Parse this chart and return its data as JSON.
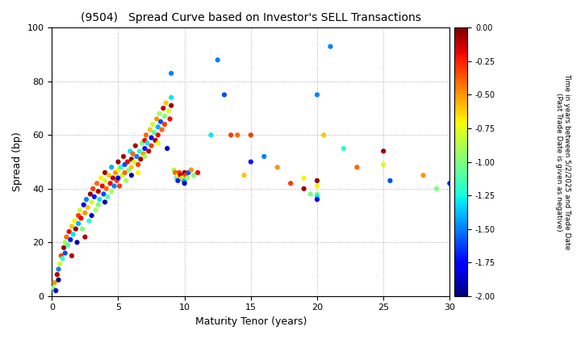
{
  "title": "(9504)   Spread Curve based on Investor's SELL Transactions",
  "xlabel": "Maturity Tenor (years)",
  "ylabel": "Spread (bp)",
  "xlim": [
    0,
    30
  ],
  "ylim": [
    0,
    100
  ],
  "xticks": [
    0,
    5,
    10,
    15,
    20,
    25,
    30
  ],
  "yticks": [
    0,
    20,
    40,
    60,
    80,
    100
  ],
  "colorbar_label_line1": "Time in years between 5/2/2025 and Trade Date",
  "colorbar_label_line2": "(Past Trade Date is given as negative)",
  "cbar_ticks": [
    0.0,
    -0.25,
    -0.5,
    -0.75,
    -1.0,
    -1.25,
    -1.5,
    -1.75,
    -2.0
  ],
  "clim": [
    -2.0,
    0.0
  ],
  "scatter_points": [
    [
      0.1,
      3,
      -1.0
    ],
    [
      0.2,
      5,
      -0.5
    ],
    [
      0.3,
      2,
      -1.8
    ],
    [
      0.4,
      8,
      -0.1
    ],
    [
      0.5,
      10,
      -1.5
    ],
    [
      0.5,
      6,
      -2.0
    ],
    [
      0.6,
      12,
      -0.8
    ],
    [
      0.7,
      15,
      -0.3
    ],
    [
      0.8,
      14,
      -1.2
    ],
    [
      0.9,
      18,
      -0.05
    ],
    [
      1.0,
      16,
      -1.6
    ],
    [
      1.0,
      20,
      -0.9
    ],
    [
      1.1,
      22,
      -0.4
    ],
    [
      1.2,
      19,
      -1.1
    ],
    [
      1.3,
      24,
      -0.2
    ],
    [
      1.4,
      21,
      -1.7
    ],
    [
      1.5,
      26,
      -0.6
    ],
    [
      1.5,
      15,
      -0.1
    ],
    [
      1.6,
      23,
      -1.3
    ],
    [
      1.7,
      28,
      -0.7
    ],
    [
      1.8,
      25,
      -0.05
    ],
    [
      1.9,
      20,
      -1.9
    ],
    [
      2.0,
      30,
      -0.3
    ],
    [
      2.0,
      27,
      -1.4
    ],
    [
      2.1,
      32,
      -0.8
    ],
    [
      2.2,
      29,
      -0.2
    ],
    [
      2.3,
      25,
      -1.0
    ],
    [
      2.4,
      34,
      -1.8
    ],
    [
      2.5,
      31,
      -0.5
    ],
    [
      2.5,
      22,
      -0.1
    ],
    [
      2.6,
      36,
      -1.5
    ],
    [
      2.7,
      33,
      -0.6
    ],
    [
      2.8,
      28,
      -1.2
    ],
    [
      2.9,
      38,
      -0.05
    ],
    [
      3.0,
      35,
      -0.8
    ],
    [
      3.0,
      30,
      -1.9
    ],
    [
      3.1,
      40,
      -0.3
    ],
    [
      3.2,
      37,
      -1.7
    ],
    [
      3.3,
      32,
      -0.9
    ],
    [
      3.4,
      42,
      -0.4
    ],
    [
      3.5,
      39,
      -0.1
    ],
    [
      3.5,
      34,
      -1.0
    ],
    [
      3.6,
      36,
      -1.3
    ],
    [
      3.7,
      44,
      -0.7
    ],
    [
      3.8,
      41,
      -0.2
    ],
    [
      3.9,
      38,
      -1.6
    ],
    [
      4.0,
      46,
      -0.05
    ],
    [
      4.0,
      43,
      -0.8
    ],
    [
      4.0,
      35,
      -1.9
    ],
    [
      4.1,
      40,
      -0.4
    ],
    [
      4.2,
      37,
      -1.1
    ],
    [
      4.3,
      45,
      -0.6
    ],
    [
      4.4,
      42,
      -0.2
    ],
    [
      4.5,
      48,
      -1.4
    ],
    [
      4.5,
      39,
      -0.9
    ],
    [
      4.6,
      44,
      -0.1
    ],
    [
      4.7,
      41,
      -1.5
    ],
    [
      4.8,
      46,
      -0.5
    ],
    [
      4.9,
      43,
      -0.3
    ],
    [
      5.0,
      50,
      -0.05
    ],
    [
      5.0,
      47,
      -0.7
    ],
    [
      5.0,
      44,
      -1.8
    ],
    [
      5.1,
      41,
      -0.3
    ],
    [
      5.2,
      48,
      -1.2
    ],
    [
      5.3,
      45,
      -0.8
    ],
    [
      5.4,
      52,
      -0.1
    ],
    [
      5.5,
      49,
      -1.6
    ],
    [
      5.5,
      46,
      -0.4
    ],
    [
      5.6,
      43,
      -0.9
    ],
    [
      5.7,
      50,
      -0.2
    ],
    [
      5.8,
      47,
      -1.0
    ],
    [
      5.9,
      54,
      -1.3
    ],
    [
      6.0,
      51,
      -0.05
    ],
    [
      6.0,
      48,
      -0.6
    ],
    [
      6.0,
      45,
      -1.9
    ],
    [
      6.1,
      53,
      -0.4
    ],
    [
      6.2,
      50,
      -0.8
    ],
    [
      6.3,
      56,
      -0.1
    ],
    [
      6.4,
      52,
      -1.5
    ],
    [
      6.5,
      49,
      -0.3
    ],
    [
      6.5,
      46,
      -0.7
    ],
    [
      6.6,
      54,
      -1.2
    ],
    [
      6.7,
      51,
      -0.05
    ],
    [
      6.8,
      57,
      -1.0
    ],
    [
      6.9,
      53,
      -0.5
    ],
    [
      7.0,
      58,
      -0.2
    ],
    [
      7.0,
      55,
      -1.7
    ],
    [
      7.0,
      52,
      -0.9
    ],
    [
      7.1,
      60,
      -0.4
    ],
    [
      7.2,
      57,
      -1.3
    ],
    [
      7.3,
      54,
      -0.1
    ],
    [
      7.4,
      62,
      -0.6
    ],
    [
      7.5,
      59,
      -1.8
    ],
    [
      7.5,
      56,
      -0.3
    ],
    [
      7.6,
      64,
      -0.8
    ],
    [
      7.7,
      61,
      -1.1
    ],
    [
      7.8,
      58,
      -0.05
    ],
    [
      7.9,
      66,
      -0.5
    ],
    [
      8.0,
      63,
      -1.4
    ],
    [
      8.0,
      60,
      -0.2
    ],
    [
      8.0,
      57,
      -0.7
    ],
    [
      8.1,
      68,
      -0.9
    ],
    [
      8.2,
      65,
      -1.6
    ],
    [
      8.3,
      62,
      -0.4
    ],
    [
      8.4,
      70,
      -0.1
    ],
    [
      8.5,
      67,
      -1.0
    ],
    [
      8.5,
      64,
      -0.3
    ],
    [
      8.6,
      72,
      -0.6
    ],
    [
      8.7,
      55,
      -1.9
    ],
    [
      8.8,
      69,
      -0.8
    ],
    [
      8.9,
      66,
      -0.2
    ],
    [
      9.0,
      74,
      -1.3
    ],
    [
      9.0,
      71,
      -0.05
    ],
    [
      9.0,
      83,
      -1.5
    ],
    [
      9.2,
      47,
      -0.9
    ],
    [
      9.3,
      46,
      -0.4
    ],
    [
      9.4,
      44,
      -1.1
    ],
    [
      9.5,
      45,
      -0.7
    ],
    [
      9.5,
      43,
      -1.7
    ],
    [
      9.6,
      46,
      -0.3
    ],
    [
      9.7,
      45,
      -0.1
    ],
    [
      9.8,
      44,
      -0.6
    ],
    [
      9.9,
      43,
      -1.2
    ],
    [
      10.0,
      46,
      -0.05
    ],
    [
      10.0,
      44,
      -0.8
    ],
    [
      10.0,
      43,
      -1.4
    ],
    [
      10.0,
      42,
      -1.9
    ],
    [
      10.1,
      45,
      -0.3
    ],
    [
      10.2,
      44,
      -0.9
    ],
    [
      10.3,
      46,
      -1.6
    ],
    [
      10.5,
      47,
      -0.5
    ],
    [
      10.7,
      45,
      -1.0
    ],
    [
      11.0,
      46,
      -0.2
    ],
    [
      12.0,
      60,
      -1.3
    ],
    [
      12.5,
      88,
      -1.5
    ],
    [
      13.0,
      75,
      -1.6
    ],
    [
      13.5,
      60,
      -0.3
    ],
    [
      14.0,
      60,
      -0.4
    ],
    [
      14.5,
      45,
      -0.6
    ],
    [
      15.0,
      50,
      -1.7
    ],
    [
      15.0,
      60,
      -0.3
    ],
    [
      16.0,
      52,
      -1.5
    ],
    [
      17.0,
      48,
      -0.5
    ],
    [
      18.0,
      42,
      -0.3
    ],
    [
      19.0,
      40,
      -0.05
    ],
    [
      19.0,
      44,
      -0.7
    ],
    [
      19.5,
      38,
      -1.0
    ],
    [
      20.0,
      43,
      -0.05
    ],
    [
      20.0,
      41,
      -0.7
    ],
    [
      20.0,
      38,
      -1.0
    ],
    [
      20.0,
      37,
      -1.3
    ],
    [
      20.0,
      36,
      -1.8
    ],
    [
      20.0,
      75,
      -1.5
    ],
    [
      20.5,
      60,
      -0.6
    ],
    [
      21.0,
      93,
      -1.5
    ],
    [
      22.0,
      55,
      -1.2
    ],
    [
      23.0,
      48,
      -0.4
    ],
    [
      25.0,
      54,
      -0.05
    ],
    [
      25.0,
      49,
      -0.8
    ],
    [
      25.5,
      43,
      -1.6
    ],
    [
      28.0,
      45,
      -0.5
    ],
    [
      29.0,
      40,
      -1.0
    ],
    [
      30.0,
      42,
      -1.7
    ]
  ],
  "marker_size": 20,
  "background_color": "#ffffff",
  "grid_color": "#aaaaaa",
  "grid_style": ":"
}
